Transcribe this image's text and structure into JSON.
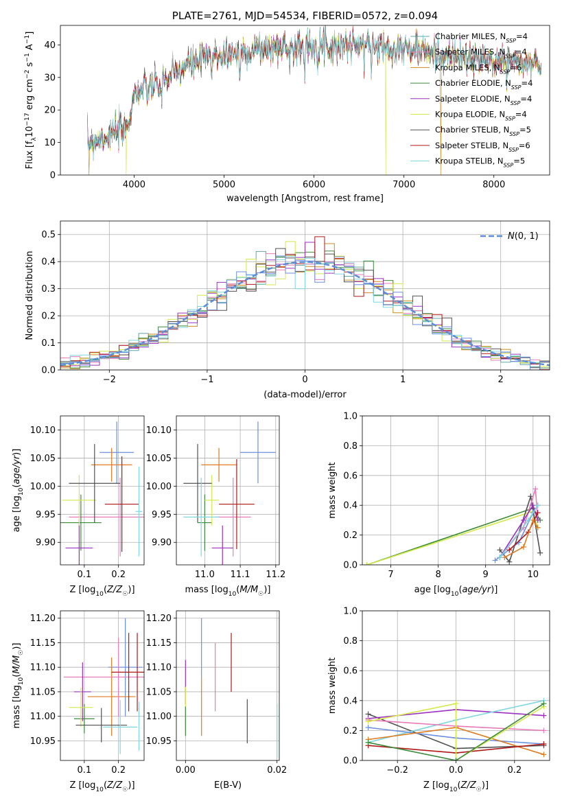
{
  "colors": {
    "chabrier_miles": "#5fa8a8",
    "salpeter_miles": "#e87ab8",
    "kroupa_miles": "#c98a1f",
    "chabrier_elodie": "#3a8a3a",
    "salpeter_elodie": "#9b30c0",
    "kroupa_elodie": "#d4e84a",
    "chabrier_stelib": "#505050",
    "salpeter_stelib": "#b01818",
    "kroupa_stelib": "#7ed6df",
    "blue": "#6b8fe0",
    "orange": "#e07a1f",
    "gauss": "#5b8dd9"
  },
  "chart_data": [
    {
      "id": "spectrum",
      "type": "line",
      "title": "PLATE=2761, MJD=54534, FIBERID=0572, z=0.094",
      "xlabel": "wavelength [Angstrom, rest frame]",
      "ylabel": "Flux [f_λ 10^-17 erg cm^-2 s^-1 A^-1]",
      "xlim": [
        3180,
        8620
      ],
      "ylim": [
        0,
        46
      ],
      "xticks": [
        4000,
        5000,
        6000,
        7000,
        8000
      ],
      "yticks": [
        0,
        10,
        20,
        30,
        40
      ],
      "legend_position": "upper right",
      "legend": [
        {
          "label": "Chabrier MILES, N_SSP=4",
          "color": "#5fa8a8"
        },
        {
          "label": "Salpeter MILES, N_SSP=4",
          "color": "#e87ab8"
        },
        {
          "label": "Kroupa MILES, N_SSP=6",
          "color": "#c98a1f"
        },
        {
          "label": "Chabrier ELODIE, N_SSP=4",
          "color": "#3a8a3a"
        },
        {
          "label": "Salpeter ELODIE, N_SSP=4",
          "color": "#9b30c0"
        },
        {
          "label": "Kroupa ELODIE, N_SSP=4",
          "color": "#d4e84a"
        },
        {
          "label": "Chabrier STELIB, N_SSP=5",
          "color": "#505050"
        },
        {
          "label": "Salpeter STELIB, N_SSP=6",
          "color": "#b01818"
        },
        {
          "label": "Kroupa STELIB, N_SSP=5",
          "color": "#7ed6df"
        }
      ],
      "continuum_knots": [
        [
          3480,
          10
        ],
        [
          3700,
          12
        ],
        [
          3900,
          14
        ],
        [
          3950,
          18
        ],
        [
          4000,
          25
        ],
        [
          4200,
          27
        ],
        [
          4400,
          30
        ],
        [
          4600,
          34
        ],
        [
          4800,
          36
        ],
        [
          5000,
          37
        ],
        [
          5200,
          38
        ],
        [
          5500,
          39
        ],
        [
          6000,
          40
        ],
        [
          6500,
          40
        ],
        [
          7000,
          39
        ],
        [
          7400,
          37
        ],
        [
          7600,
          36
        ],
        [
          8000,
          35
        ],
        [
          8500,
          34
        ]
      ],
      "drops": [
        {
          "x": 3500,
          "series": "kroupa_miles"
        },
        {
          "x": 3910,
          "series": "kroupa_elodie"
        },
        {
          "x": 6800,
          "series": "kroupa_elodie"
        },
        {
          "x": 7410,
          "series": "kroupa_miles"
        }
      ]
    },
    {
      "id": "residuals",
      "type": "line",
      "xlabel": "(data-model)/error",
      "ylabel": "Normed distribution",
      "xlim": [
        -2.5,
        2.5
      ],
      "ylim": [
        0,
        0.55
      ],
      "xticks": [
        -2,
        -1,
        0,
        1,
        2
      ],
      "yticks": [
        0.0,
        0.1,
        0.2,
        0.3,
        0.4,
        0.5
      ],
      "grid": true,
      "legend_position": "upper right",
      "legend": [
        {
          "label": "N(0, 1)",
          "color": "#5b8dd9",
          "style": "dashed"
        }
      ],
      "bin_width": 0.1
    },
    {
      "id": "age_vs_Z",
      "type": "scatter",
      "xlabel": "Z [log10(Z/Z☉)]",
      "ylabel": "age [log10(age/yr)]",
      "xlim": [
        0.03,
        0.275
      ],
      "ylim": [
        9.86,
        10.125
      ],
      "xticks": [
        0.1,
        0.2
      ],
      "yticks": [
        9.9,
        9.95,
        10.0,
        10.05,
        10.1
      ],
      "grid": true,
      "points": [
        {
          "series": "blue",
          "x": 0.195,
          "y": 10.06,
          "xerr": 0.05,
          "yerr": 0.055
        },
        {
          "series": "orange",
          "x": 0.18,
          "y": 10.038,
          "xerr": 0.06,
          "yerr": 0.03
        },
        {
          "series": "salpeter_miles",
          "x": 0.205,
          "y": 9.945,
          "xerr": 0.15,
          "yerr": 0.07
        },
        {
          "series": "chabrier_elodie",
          "x": 0.09,
          "y": 9.935,
          "xerr": 0.06,
          "yerr": 0.05
        },
        {
          "series": "salpeter_elodie",
          "x": 0.085,
          "y": 9.89,
          "xerr": 0.04,
          "yerr": 0.05
        },
        {
          "series": "kroupa_elodie",
          "x": 0.085,
          "y": 9.975,
          "xerr": 0.05,
          "yerr": 0.045
        },
        {
          "series": "chabrier_stelib",
          "x": 0.13,
          "y": 10.005,
          "xerr": 0.075,
          "yerr": 0.07
        },
        {
          "series": "salpeter_stelib",
          "x": 0.21,
          "y": 9.968,
          "xerr": 0.05,
          "yerr": 0.085
        },
        {
          "series": "kroupa_stelib",
          "x": 0.26,
          "y": 9.955,
          "xerr": 0.01,
          "yerr": 0.08
        }
      ]
    },
    {
      "id": "age_vs_mass",
      "type": "scatter",
      "xlabel": "mass [log10(M/M☉)]",
      "ylabel": "",
      "xlim": [
        10.92,
        11.21
      ],
      "ylim": [
        9.86,
        10.125
      ],
      "xticks": [
        11.0,
        11.1,
        11.2
      ],
      "yticks": [
        9.9,
        9.95,
        10.0,
        10.05,
        10.1
      ],
      "grid": true,
      "points": [
        {
          "series": "blue",
          "x": 11.15,
          "y": 10.06,
          "xerr": 0.05,
          "yerr": 0.055
        },
        {
          "series": "orange",
          "x": 11.04,
          "y": 10.038,
          "xerr": 0.05,
          "yerr": 0.03
        },
        {
          "series": "salpeter_miles",
          "x": 11.08,
          "y": 9.945,
          "xerr": 0.05,
          "yerr": 0.07
        },
        {
          "series": "chabrier_elodie",
          "x": 11.0,
          "y": 9.935,
          "xerr": 0.02,
          "yerr": 0.05
        },
        {
          "series": "salpeter_elodie",
          "x": 11.05,
          "y": 9.89,
          "xerr": 0.03,
          "yerr": 0.04
        },
        {
          "series": "kroupa_elodie",
          "x": 11.02,
          "y": 9.975,
          "xerr": 0.02,
          "yerr": 0.045
        },
        {
          "series": "chabrier_stelib",
          "x": 10.98,
          "y": 10.005,
          "xerr": 0.04,
          "yerr": 0.07
        },
        {
          "series": "salpeter_stelib",
          "x": 11.09,
          "y": 9.968,
          "xerr": 0.05,
          "yerr": 0.08
        },
        {
          "series": "kroupa_stelib",
          "x": 10.99,
          "y": 9.945,
          "xerr": 0.05,
          "yerr": 0.07
        }
      ]
    },
    {
      "id": "mass_weight_vs_age",
      "type": "line",
      "xlabel": "age [log10(age/yr)]",
      "ylabel": "mass weight",
      "xlim": [
        6.4,
        10.35
      ],
      "ylim": [
        0,
        1
      ],
      "xticks": [
        7,
        8,
        9,
        10
      ],
      "yticks": [
        0.0,
        0.2,
        0.4,
        0.6,
        0.8,
        1.0
      ],
      "grid": true,
      "series": [
        {
          "name": "chabrier_elodie",
          "points": [
            [
              6.5,
              0
            ],
            [
              10.0,
              0.38
            ],
            [
              10.15,
              0.3
            ]
          ]
        },
        {
          "name": "kroupa_elodie",
          "points": [
            [
              6.5,
              0
            ],
            [
              10.0,
              0.36
            ],
            [
              10.1,
              0.25
            ]
          ]
        },
        {
          "name": "chabrier_stelib",
          "points": [
            [
              9.3,
              0.1
            ],
            [
              9.5,
              0.02
            ],
            [
              9.95,
              0.46
            ],
            [
              10.15,
              0.08
            ]
          ]
        },
        {
          "name": "salpeter_miles",
          "points": [
            [
              9.3,
              0.05
            ],
            [
              9.8,
              0.25
            ],
            [
              10.05,
              0.51
            ],
            [
              10.1,
              0.3
            ]
          ]
        },
        {
          "name": "blue",
          "points": [
            [
              9.2,
              0.03
            ],
            [
              9.7,
              0.15
            ],
            [
              10.0,
              0.35
            ],
            [
              10.1,
              0.4
            ]
          ]
        },
        {
          "name": "salpeter_elodie",
          "points": [
            [
              9.3,
              0.05
            ],
            [
              9.8,
              0.3
            ],
            [
              10.0,
              0.4
            ],
            [
              10.1,
              0.3
            ]
          ]
        },
        {
          "name": "salpeter_stelib",
          "points": [
            [
              9.5,
              0.1
            ],
            [
              9.9,
              0.22
            ],
            [
              10.1,
              0.35
            ]
          ]
        },
        {
          "name": "orange",
          "points": [
            [
              9.4,
              0.05
            ],
            [
              9.8,
              0.12
            ],
            [
              10.0,
              0.3
            ],
            [
              10.1,
              0.25
            ]
          ]
        },
        {
          "name": "kroupa_stelib",
          "points": [
            [
              9.3,
              0.05
            ],
            [
              9.9,
              0.3
            ],
            [
              10.1,
              0.4
            ]
          ]
        }
      ]
    },
    {
      "id": "mass_vs_Z",
      "type": "scatter",
      "xlabel": "Z [log10(Z/Z☉)]",
      "ylabel": "mass [log10(M/M☉)]",
      "xlim": [
        0.03,
        0.275
      ],
      "ylim": [
        10.91,
        11.215
      ],
      "xticks": [
        0.1,
        0.2
      ],
      "yticks": [
        10.95,
        11.0,
        11.05,
        11.1,
        11.15,
        11.2
      ],
      "grid": true,
      "points": [
        {
          "series": "blue",
          "x": 0.22,
          "y": 11.1,
          "xerr": 0.05,
          "yerr": 0.1
        },
        {
          "series": "orange",
          "x": 0.18,
          "y": 11.04,
          "xerr": 0.07,
          "yerr": 0.08
        },
        {
          "series": "salpeter_miles",
          "x": 0.2,
          "y": 11.08,
          "xerr": 0.16,
          "yerr": 0.08
        },
        {
          "series": "chabrier_elodie",
          "x": 0.1,
          "y": 10.995,
          "xerr": 0.03,
          "yerr": 0.03
        },
        {
          "series": "salpeter_elodie",
          "x": 0.095,
          "y": 11.05,
          "xerr": 0.025,
          "yerr": 0.06
        },
        {
          "series": "kroupa_elodie",
          "x": 0.09,
          "y": 11.018,
          "xerr": 0.035,
          "yerr": 0.04
        },
        {
          "series": "chabrier_stelib",
          "x": 0.15,
          "y": 10.982,
          "xerr": 0.075,
          "yerr": 0.035
        },
        {
          "series": "salpeter_stelib",
          "x": 0.23,
          "y": 11.09,
          "xerr": 0.05,
          "yerr": 0.08
        },
        {
          "series": "kroupa_stelib",
          "x": 0.205,
          "y": 10.978,
          "xerr": 0.05,
          "yerr": 0.055
        },
        {
          "series": "salpeter_stelib",
          "x": 0.255,
          "y": 11.09,
          "xerr": 0.0,
          "yerr": 0.08
        },
        {
          "series": "kroupa_stelib",
          "x": 0.26,
          "y": 10.98,
          "xerr": 0.0,
          "yerr": 0.05
        }
      ]
    },
    {
      "id": "mass_vs_ebv",
      "type": "scatter",
      "xlabel": "E(B-V)",
      "ylabel": "",
      "xlim": [
        -0.002,
        0.0205
      ],
      "ylim": [
        10.91,
        11.215
      ],
      "xticks": [
        0.0,
        0.02
      ],
      "yticks": [
        10.95,
        11.0,
        11.05,
        11.1,
        11.15,
        11.2
      ],
      "grid": true,
      "points": [
        {
          "series": "salpeter_elodie",
          "x": 0.0,
          "y": 11.07,
          "yerr": 0.045
        },
        {
          "series": "kroupa_elodie",
          "x": 0.0,
          "y": 11.02,
          "yerr": 0.04
        },
        {
          "series": "chabrier_elodie",
          "x": 0.0,
          "y": 10.99,
          "yerr": 0.03
        },
        {
          "series": "orange",
          "x": 0.0035,
          "y": 11.02,
          "yerr": 0.06
        },
        {
          "series": "blue",
          "x": 0.0035,
          "y": 11.14,
          "yerr": 0.06
        },
        {
          "series": "salpeter_miles",
          "x": 0.0065,
          "y": 11.08,
          "yerr": 0.07
        },
        {
          "series": "salpeter_stelib",
          "x": 0.01,
          "y": 11.11,
          "yerr": 0.06
        },
        {
          "series": "chabrier_stelib",
          "x": 0.0135,
          "y": 10.99,
          "yerr": 0.045
        },
        {
          "series": "kroupa_stelib",
          "x": 0.02,
          "y": 10.97,
          "yerr": 0.055
        }
      ]
    },
    {
      "id": "mass_weight_vs_Z",
      "type": "line",
      "xlabel": "Z [log10(Z/Z☉)]",
      "ylabel": "mass weight",
      "xlim": [
        -0.32,
        0.32
      ],
      "ylim": [
        0,
        1
      ],
      "xticks": [
        -0.2,
        0.0,
        0.2
      ],
      "yticks": [
        0.0,
        0.2,
        0.4,
        0.6,
        0.8,
        1.0
      ],
      "grid": true,
      "series": [
        {
          "name": "chabrier_stelib",
          "points": [
            [
              -0.3,
              0.31
            ],
            [
              0.0,
              0.08
            ],
            [
              0.3,
              0.1
            ]
          ]
        },
        {
          "name": "salpeter_elodie",
          "points": [
            [
              -0.3,
              0.28
            ],
            [
              0.0,
              0.34
            ],
            [
              0.3,
              0.3
            ]
          ]
        },
        {
          "name": "kroupa_stelib",
          "points": [
            [
              -0.3,
              0.12
            ],
            [
              0.0,
              0.27
            ],
            [
              0.3,
              0.4
            ]
          ]
        },
        {
          "name": "salpeter_miles",
          "points": [
            [
              -0.3,
              0.27
            ],
            [
              0.0,
              0.23
            ],
            [
              0.3,
              0.2
            ]
          ]
        },
        {
          "name": "blue",
          "points": [
            [
              -0.3,
              0.22
            ],
            [
              0.0,
              0.15
            ],
            [
              0.3,
              0.11
            ]
          ]
        },
        {
          "name": "orange",
          "points": [
            [
              -0.3,
              0.14
            ],
            [
              0.0,
              0.22
            ],
            [
              0.3,
              0.04
            ]
          ]
        },
        {
          "name": "salpeter_stelib",
          "points": [
            [
              -0.3,
              0.1
            ],
            [
              0.0,
              0.05
            ],
            [
              0.3,
              0.11
            ]
          ]
        },
        {
          "name": "kroupa_elodie",
          "points": [
            [
              -0.3,
              0.26
            ],
            [
              0.0,
              0.38
            ],
            [
              0.0,
              0.0
            ],
            [
              0.3,
              0.36
            ]
          ]
        },
        {
          "name": "chabrier_elodie",
          "points": [
            [
              -0.3,
              0.12
            ],
            [
              0.0,
              0.0
            ],
            [
              0.3,
              0.38
            ]
          ]
        }
      ]
    }
  ]
}
